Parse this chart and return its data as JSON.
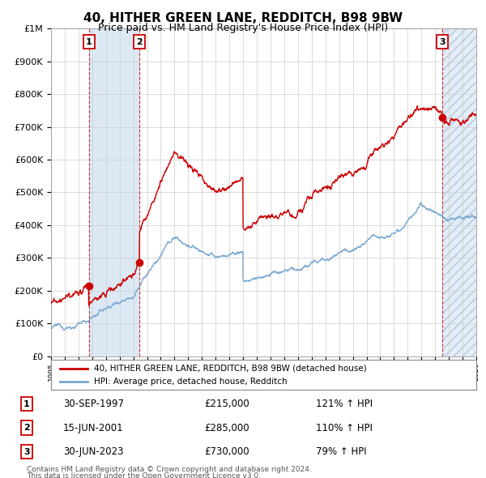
{
  "title": "40, HITHER GREEN LANE, REDDITCH, B98 9BW",
  "subtitle": "Price paid vs. HM Land Registry's House Price Index (HPI)",
  "legend_line1": "40, HITHER GREEN LANE, REDDITCH, B98 9BW (detached house)",
  "legend_line2": "HPI: Average price, detached house, Redditch",
  "footer1": "Contains HM Land Registry data © Crown copyright and database right 2024.",
  "footer2": "This data is licensed under the Open Government Licence v3.0.",
  "transactions": [
    {
      "label": "1",
      "date": "30-SEP-1997",
      "price": 215000,
      "pct": "121%",
      "dir": "↑"
    },
    {
      "label": "2",
      "date": "15-JUN-2001",
      "price": 285000,
      "pct": "110%",
      "dir": "↑"
    },
    {
      "label": "3",
      "date": "30-JUN-2023",
      "price": 730000,
      "pct": "79%",
      "dir": "↑"
    }
  ],
  "t1_year": 1997.75,
  "t2_year": 2001.45,
  "t3_year": 2023.5,
  "t1_price": 215000,
  "t2_price": 285000,
  "t3_price": 730000,
  "ylim": [
    0,
    1000000
  ],
  "xlim_start": 1995.0,
  "xlim_end": 2026.0,
  "red_color": "#cc0000",
  "blue_color": "#7aa8d2",
  "background_color": "#ffffff",
  "grid_color": "#cccccc",
  "shade_color": "#dce9f5",
  "hatch_color": "#b8c8d8"
}
